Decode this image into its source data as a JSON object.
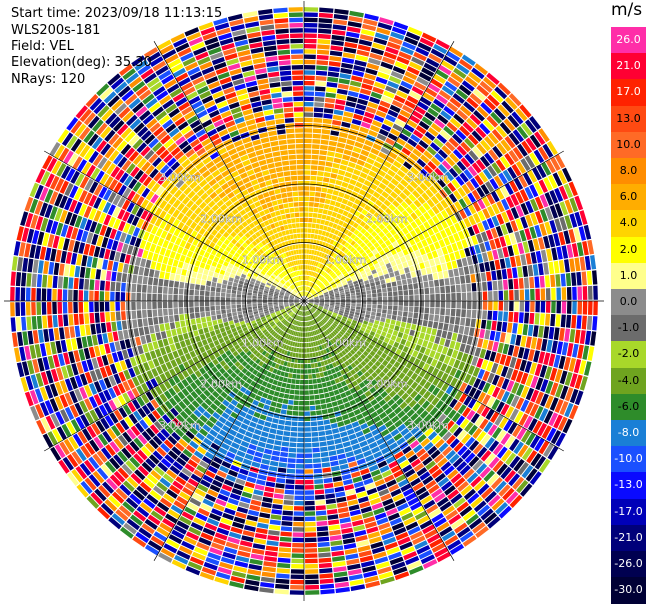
{
  "header": {
    "start_time": "Start time: 2023/09/18 11:13:15",
    "site": "WLS200s-181",
    "field": "Field: VEL",
    "elevation": "Elevation(deg): 35.30",
    "nrays": "NRays: 120"
  },
  "colorbar": {
    "unit": "m/s",
    "entries": [
      {
        "label": "26.0",
        "color": "#ff2ea8"
      },
      {
        "label": "21.0",
        "color": "#ff0033"
      },
      {
        "label": "17.0",
        "color": "#ff2200"
      },
      {
        "label": "13.0",
        "color": "#ff4a12"
      },
      {
        "label": "10.0",
        "color": "#ff6a26"
      },
      {
        "label": "8.0",
        "color": "#ff8d00"
      },
      {
        "label": "6.0",
        "color": "#ffad00"
      },
      {
        "label": "4.0",
        "color": "#ffd400"
      },
      {
        "label": "2.0",
        "color": "#ffff00"
      },
      {
        "label": "1.0",
        "color": "#ffff8c"
      },
      {
        "label": "0.0",
        "color": "#8c8c8c"
      },
      {
        "label": "-1.0",
        "color": "#6c6c6c"
      },
      {
        "label": "-2.0",
        "color": "#a8d82a"
      },
      {
        "label": "-4.0",
        "color": "#6fa41f"
      },
      {
        "label": "-6.0",
        "color": "#2e8c2a"
      },
      {
        "label": "-8.0",
        "color": "#1a7fd6"
      },
      {
        "label": "-10.0",
        "color": "#1a50ff"
      },
      {
        "label": "-13.0",
        "color": "#0a0aff"
      },
      {
        "label": "-17.0",
        "color": "#0000b8"
      },
      {
        "label": "-21.0",
        "color": "#00007a"
      },
      {
        "label": "-26.0",
        "color": "#000050"
      },
      {
        "label": "-30.0",
        "color": "#000035"
      }
    ]
  },
  "chart_data": {
    "type": "heatmap",
    "projection": "polar-ppi",
    "field": "VEL",
    "n_rays": 120,
    "range_rings_km": [
      1.0,
      2.0,
      3.0
    ],
    "ring_labels": [
      "1.00km",
      "2.00km",
      "3.00km"
    ],
    "azimuth_spokes_deg": [
      0,
      30,
      60,
      90,
      120,
      150,
      180,
      210,
      240,
      270,
      300,
      330
    ],
    "value_range": [
      -30.0,
      26.0
    ],
    "pattern": "positive velocities (yellow/orange) toward north, negative (green) toward south, near-zero grey band along east-west; outer ranges noisy"
  }
}
